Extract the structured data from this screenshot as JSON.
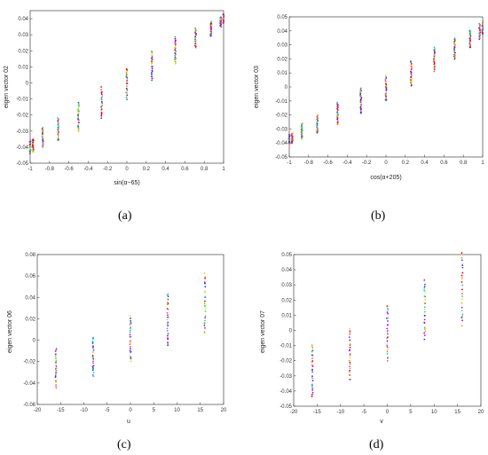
{
  "colors": [
    "#ff0000",
    "#ff8c00",
    "#dddd00",
    "#33dd33",
    "#00cccc",
    "#0066ff",
    "#5522cc",
    "#cc00cc",
    "#ff44aa"
  ],
  "chart_data": [
    {
      "type": "scatter",
      "panel_label": "(a)",
      "xlabel": "sin(α−65)",
      "ylabel": "eigen vector 02",
      "xlim": [
        -1,
        1
      ],
      "ylim": [
        -0.05,
        0.045
      ],
      "xticks": [
        -1,
        -0.8,
        -0.6,
        -0.4,
        -0.2,
        0,
        0.2,
        0.4,
        0.6,
        0.8,
        1
      ],
      "yticks": [
        -0.05,
        -0.04,
        -0.03,
        -0.02,
        -0.01,
        0,
        0.01,
        0.02,
        0.03,
        0.04
      ],
      "xtick_labels": [
        "-1",
        "-0.8",
        "-0.6",
        "-0.4",
        "-0.2",
        "0",
        "0.2",
        "0.4",
        "0.6",
        "0.8",
        "1"
      ],
      "ytick_labels": [
        "-0.05",
        "-0.04",
        "-0.03",
        "-0.02",
        "-0.01",
        "0",
        "0.01",
        "0.02",
        "0.03",
        "0.04"
      ],
      "columns": [
        {
          "x": -1.0,
          "ymin": -0.044,
          "ymax": -0.036
        },
        {
          "x": -0.97,
          "ymin": -0.043,
          "ymax": -0.035
        },
        {
          "x": -0.87,
          "ymin": -0.04,
          "ymax": -0.028
        },
        {
          "x": -0.71,
          "ymin": -0.036,
          "ymax": -0.022
        },
        {
          "x": -0.5,
          "ymin": -0.03,
          "ymax": -0.012
        },
        {
          "x": -0.26,
          "ymin": -0.022,
          "ymax": -0.003
        },
        {
          "x": 0.0,
          "ymin": -0.01,
          "ymax": 0.009
        },
        {
          "x": 0.26,
          "ymin": 0.002,
          "ymax": 0.02
        },
        {
          "x": 0.5,
          "ymin": 0.012,
          "ymax": 0.029
        },
        {
          "x": 0.71,
          "ymin": 0.022,
          "ymax": 0.034
        },
        {
          "x": 0.87,
          "ymin": 0.029,
          "ymax": 0.038
        },
        {
          "x": 0.97,
          "ymin": 0.035,
          "ymax": 0.041
        },
        {
          "x": 1.0,
          "ymin": 0.037,
          "ymax": 0.043
        }
      ]
    },
    {
      "type": "scatter",
      "panel_label": "(b)",
      "xlabel": "cos(α+205)",
      "ylabel": "eigen vector 03",
      "xlim": [
        -1,
        1
      ],
      "ylim": [
        -0.05,
        0.05
      ],
      "xticks": [
        -1,
        -0.8,
        -0.6,
        -0.4,
        -0.2,
        0,
        0.2,
        0.4,
        0.6,
        0.8,
        1
      ],
      "yticks": [
        -0.05,
        -0.04,
        -0.03,
        -0.02,
        -0.01,
        0,
        0.01,
        0.02,
        0.03,
        0.04,
        0.05
      ],
      "xtick_labels": [
        "-1",
        "-0.8",
        "-0.6",
        "-0.4",
        "-0.2",
        "0",
        "0.2",
        "0.4",
        "0.6",
        "0.8",
        "1"
      ],
      "ytick_labels": [
        "-0.05",
        "-0.04",
        "-0.03",
        "-0.02",
        "-0.01",
        "0",
        "0.01",
        "0.02",
        "0.03",
        "0.04",
        "0.05"
      ],
      "columns": [
        {
          "x": -1.0,
          "ymin": -0.041,
          "ymax": -0.034
        },
        {
          "x": -0.97,
          "ymin": -0.04,
          "ymax": -0.033
        },
        {
          "x": -0.87,
          "ymin": -0.037,
          "ymax": -0.026
        },
        {
          "x": -0.71,
          "ymin": -0.033,
          "ymax": -0.02
        },
        {
          "x": -0.5,
          "ymin": -0.027,
          "ymax": -0.011
        },
        {
          "x": -0.26,
          "ymin": -0.019,
          "ymax": -0.001
        },
        {
          "x": 0.0,
          "ymin": -0.01,
          "ymax": 0.008
        },
        {
          "x": 0.26,
          "ymin": 0.001,
          "ymax": 0.019
        },
        {
          "x": 0.5,
          "ymin": 0.011,
          "ymax": 0.028
        },
        {
          "x": 0.71,
          "ymin": 0.02,
          "ymax": 0.035
        },
        {
          "x": 0.87,
          "ymin": 0.028,
          "ymax": 0.04
        },
        {
          "x": 0.97,
          "ymin": 0.034,
          "ymax": 0.045
        },
        {
          "x": 1.0,
          "ymin": 0.037,
          "ymax": 0.047
        }
      ]
    },
    {
      "type": "scatter",
      "panel_label": "(c)",
      "xlabel": "u",
      "ylabel": "eigen vector 06",
      "xlim": [
        -20,
        20
      ],
      "ylim": [
        -0.06,
        0.08
      ],
      "xticks": [
        -20,
        -15,
        -10,
        -5,
        0,
        5,
        10,
        15,
        20
      ],
      "yticks": [
        -0.06,
        -0.04,
        -0.02,
        0,
        0.02,
        0.04,
        0.06,
        0.08
      ],
      "xtick_labels": [
        "-20",
        "-15",
        "-10",
        "-5",
        "0",
        "5",
        "10",
        "15",
        "20"
      ],
      "ytick_labels": [
        "-0.06",
        "-0.04",
        "-0.02",
        "0",
        "0.02",
        "0.04",
        "0.06",
        "0.08"
      ],
      "columns": [
        {
          "x": -16,
          "ymin": -0.044,
          "ymax": -0.008
        },
        {
          "x": -8,
          "ymin": -0.033,
          "ymax": 0.002
        },
        {
          "x": 0,
          "ymin": -0.019,
          "ymax": 0.022
        },
        {
          "x": 8,
          "ymin": -0.005,
          "ymax": 0.044
        },
        {
          "x": 16,
          "ymin": 0.006,
          "ymax": 0.062
        }
      ]
    },
    {
      "type": "scatter",
      "panel_label": "(d)",
      "xlabel": "v",
      "ylabel": "eigen vector 07",
      "xlim": [
        -20,
        20
      ],
      "ylim": [
        -0.05,
        0.05
      ],
      "xticks": [
        -20,
        -15,
        -10,
        -5,
        0,
        5,
        10,
        15,
        20
      ],
      "yticks": [
        -0.05,
        -0.04,
        -0.03,
        -0.02,
        -0.01,
        0,
        0.01,
        0.02,
        0.03,
        0.04,
        0.05
      ],
      "xtick_labels": [
        "-20",
        "-15",
        "-10",
        "-5",
        "0",
        "5",
        "10",
        "15",
        "20"
      ],
      "ytick_labels": [
        "-0.05",
        "-0.04",
        "-0.03",
        "-0.02",
        "-0.01",
        "0",
        "0.01",
        "0.02",
        "0.03",
        "0.04",
        "0.05"
      ],
      "columns": [
        {
          "x": -16,
          "ymin": -0.043,
          "ymax": -0.009
        },
        {
          "x": -8,
          "ymin": -0.033,
          "ymax": 0.001
        },
        {
          "x": 0,
          "ymin": -0.02,
          "ymax": 0.016
        },
        {
          "x": 8,
          "ymin": -0.005,
          "ymax": 0.034
        },
        {
          "x": 16,
          "ymin": 0.004,
          "ymax": 0.05
        }
      ]
    }
  ]
}
